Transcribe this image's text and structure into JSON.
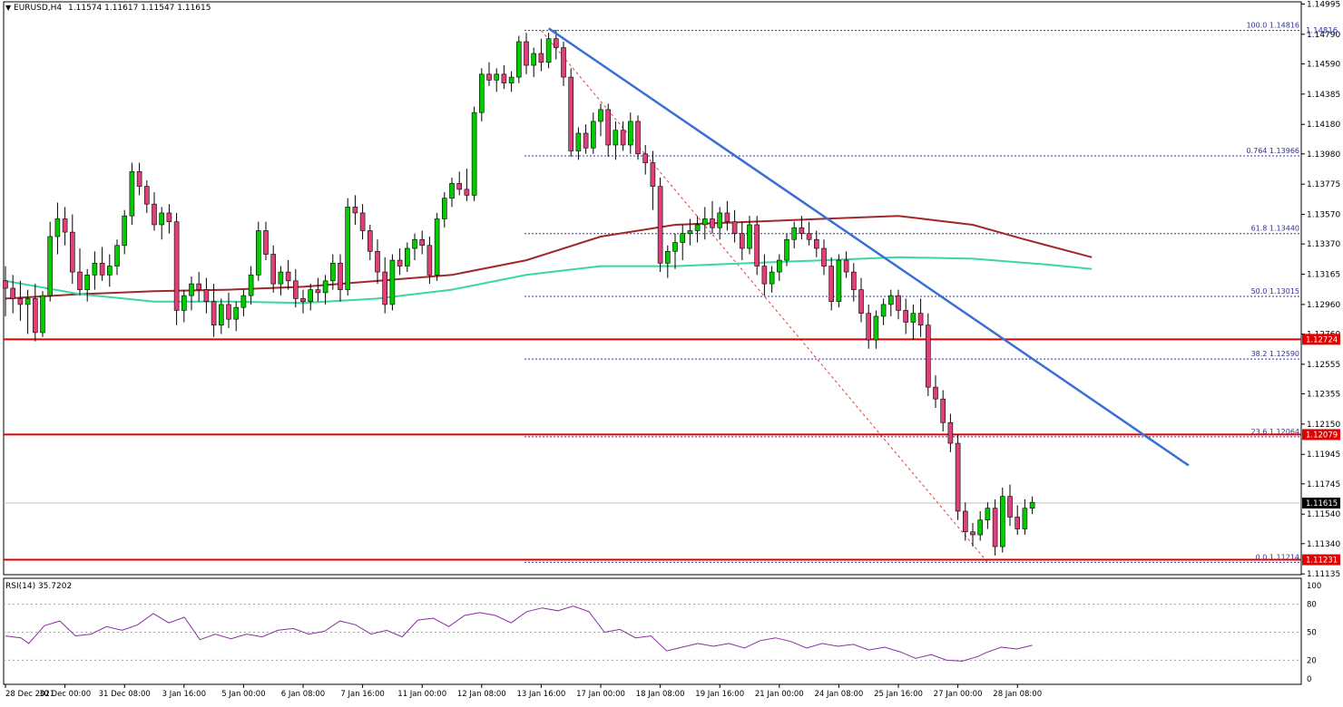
{
  "header": {
    "symbol": "EURUSD,H4",
    "ohlc": "1.11574 1.11617 1.11547 1.11615"
  },
  "rsi_header": "RSI(14) 35.7202",
  "colors": {
    "bull": "#00cc00",
    "bear": "#e0407a",
    "ma_slow": "#a02828",
    "ma_fast": "#3cd6a0",
    "trendline": "#3a6fd6",
    "support": "#e00000",
    "fib": "#3030a0",
    "rsi": "#8a2fa0"
  },
  "price_axis": {
    "min": 1.1113,
    "max": 1.1501,
    "ticks": [
      "1.14995",
      "1.14790",
      "1.14590",
      "1.14385",
      "1.14180",
      "1.13980",
      "1.13775",
      "1.13570",
      "1.13370",
      "1.13165",
      "1.12960",
      "1.12760",
      "1.12555",
      "1.12355",
      "1.12150",
      "1.11945",
      "1.11745",
      "1.11540",
      "1.11340",
      "1.11135"
    ]
  },
  "price_badges": [
    {
      "label": "1.14816",
      "value": 1.14816,
      "kind": "blue"
    },
    {
      "label": "1.12724",
      "value": 1.12724,
      "kind": "red"
    },
    {
      "label": "1.12079",
      "value": 1.12079,
      "kind": "red"
    },
    {
      "label": "1.11615",
      "value": 1.11615,
      "kind": "black"
    },
    {
      "label": "1.11231",
      "value": 1.11231,
      "kind": "red"
    }
  ],
  "support_levels": [
    1.12724,
    1.12079,
    1.11231
  ],
  "current_price": 1.11615,
  "fib_levels": [
    {
      "label": "100.0 1.14816",
      "value": 1.14816
    },
    {
      "label": "0.764 1.13966",
      "value": 1.13966
    },
    {
      "label": "61.8 1.13440",
      "value": 1.1344
    },
    {
      "label": "50.0 1.13015",
      "value": 1.13015
    },
    {
      "label": "38.2 1.12590",
      "value": 1.1259
    },
    {
      "label": "23.6 1.12064",
      "value": 1.12064
    },
    {
      "label": "0.0 1.11214",
      "value": 1.11214
    }
  ],
  "time_axis": [
    {
      "label": "28 Dec 2021",
      "bar": 0
    },
    {
      "label": "30 Dec 00:00",
      "bar": 8
    },
    {
      "label": "31 Dec 08:00",
      "bar": 16
    },
    {
      "label": "3 Jan 16:00",
      "bar": 24
    },
    {
      "label": "5 Jan 00:00",
      "bar": 32
    },
    {
      "label": "6 Jan 08:00",
      "bar": 40
    },
    {
      "label": "7 Jan 16:00",
      "bar": 48
    },
    {
      "label": "11 Jan 00:00",
      "bar": 56
    },
    {
      "label": "12 Jan 08:00",
      "bar": 64
    },
    {
      "label": "13 Jan 16:00",
      "bar": 72
    },
    {
      "label": "17 Jan 00:00",
      "bar": 80
    },
    {
      "label": "18 Jan 08:00",
      "bar": 88
    },
    {
      "label": "19 Jan 16:00",
      "bar": 96
    },
    {
      "label": "21 Jan 00:00",
      "bar": 104
    },
    {
      "label": "24 Jan 08:00",
      "bar": 112
    },
    {
      "label": "25 Jan 16:00",
      "bar": 120
    },
    {
      "label": "27 Jan 00:00",
      "bar": 128
    },
    {
      "label": "28 Jan 08:00",
      "bar": 136
    }
  ],
  "rsi_axis": [
    "100",
    "80",
    "50",
    "20",
    "0"
  ],
  "rsi_levels": [
    80,
    50,
    20
  ],
  "chart_data": {
    "type": "candlestick",
    "symbol": "EURUSD",
    "timeframe": "H4",
    "candles": [
      [
        1.1312,
        1.1322,
        1.1288,
        1.1307
      ],
      [
        1.1307,
        1.1316,
        1.129,
        1.13
      ],
      [
        1.13,
        1.1312,
        1.1285,
        1.1296
      ],
      [
        1.1296,
        1.1306,
        1.1276,
        1.13
      ],
      [
        1.13,
        1.131,
        1.1271,
        1.1277
      ],
      [
        1.1277,
        1.1305,
        1.1274,
        1.1302
      ],
      [
        1.1302,
        1.1352,
        1.1298,
        1.1342
      ],
      [
        1.1342,
        1.1365,
        1.133,
        1.1354
      ],
      [
        1.1354,
        1.1362,
        1.1336,
        1.1345
      ],
      [
        1.1345,
        1.1357,
        1.131,
        1.1318
      ],
      [
        1.1318,
        1.1334,
        1.1302,
        1.1306
      ],
      [
        1.1306,
        1.132,
        1.1298,
        1.1316
      ],
      [
        1.1316,
        1.1332,
        1.1306,
        1.1324
      ],
      [
        1.1324,
        1.1335,
        1.1312,
        1.1316
      ],
      [
        1.1316,
        1.133,
        1.1308,
        1.1322
      ],
      [
        1.1322,
        1.134,
        1.1316,
        1.1336
      ],
      [
        1.1336,
        1.136,
        1.133,
        1.1356
      ],
      [
        1.1356,
        1.1392,
        1.135,
        1.1386
      ],
      [
        1.1386,
        1.1392,
        1.137,
        1.1376
      ],
      [
        1.1376,
        1.138,
        1.1358,
        1.1364
      ],
      [
        1.1364,
        1.1372,
        1.1346,
        1.135
      ],
      [
        1.135,
        1.1362,
        1.134,
        1.1358
      ],
      [
        1.1358,
        1.1364,
        1.1344,
        1.1352
      ],
      [
        1.1352,
        1.1358,
        1.1282,
        1.1292
      ],
      [
        1.1292,
        1.1306,
        1.1284,
        1.1302
      ],
      [
        1.1302,
        1.1315,
        1.1292,
        1.131
      ],
      [
        1.131,
        1.1318,
        1.1298,
        1.1306
      ],
      [
        1.1306,
        1.1314,
        1.129,
        1.1298
      ],
      [
        1.1298,
        1.131,
        1.1274,
        1.1282
      ],
      [
        1.1282,
        1.13,
        1.1276,
        1.1296
      ],
      [
        1.1296,
        1.1304,
        1.128,
        1.1286
      ],
      [
        1.1286,
        1.1298,
        1.1278,
        1.1294
      ],
      [
        1.1294,
        1.1306,
        1.1288,
        1.1302
      ],
      [
        1.1302,
        1.1322,
        1.1296,
        1.1316
      ],
      [
        1.1316,
        1.1352,
        1.1312,
        1.1346
      ],
      [
        1.1346,
        1.1352,
        1.1326,
        1.133
      ],
      [
        1.133,
        1.1336,
        1.1304,
        1.131
      ],
      [
        1.131,
        1.1322,
        1.1302,
        1.1318
      ],
      [
        1.1318,
        1.1326,
        1.1306,
        1.1312
      ],
      [
        1.1312,
        1.132,
        1.1294,
        1.13
      ],
      [
        1.13,
        1.1306,
        1.129,
        1.1298
      ],
      [
        1.1298,
        1.131,
        1.1292,
        1.1306
      ],
      [
        1.1306,
        1.1314,
        1.1298,
        1.1304
      ],
      [
        1.1304,
        1.1316,
        1.1296,
        1.1312
      ],
      [
        1.1312,
        1.133,
        1.1306,
        1.1324
      ],
      [
        1.1324,
        1.133,
        1.1298,
        1.1306
      ],
      [
        1.1306,
        1.1368,
        1.1302,
        1.1362
      ],
      [
        1.1362,
        1.137,
        1.135,
        1.1358
      ],
      [
        1.1358,
        1.1364,
        1.134,
        1.1346
      ],
      [
        1.1346,
        1.135,
        1.1326,
        1.1332
      ],
      [
        1.1332,
        1.134,
        1.131,
        1.1318
      ],
      [
        1.1318,
        1.1328,
        1.129,
        1.1296
      ],
      [
        1.1296,
        1.133,
        1.1292,
        1.1326
      ],
      [
        1.1326,
        1.1334,
        1.1316,
        1.1322
      ],
      [
        1.1322,
        1.1338,
        1.1318,
        1.1334
      ],
      [
        1.1334,
        1.1344,
        1.1326,
        1.134
      ],
      [
        1.134,
        1.1346,
        1.133,
        1.1336
      ],
      [
        1.1336,
        1.1342,
        1.131,
        1.1316
      ],
      [
        1.1316,
        1.1358,
        1.1312,
        1.1354
      ],
      [
        1.1354,
        1.1372,
        1.1348,
        1.1368
      ],
      [
        1.1368,
        1.1382,
        1.1362,
        1.1378
      ],
      [
        1.1378,
        1.1386,
        1.137,
        1.1374
      ],
      [
        1.1374,
        1.1388,
        1.1366,
        1.137
      ],
      [
        1.137,
        1.143,
        1.1366,
        1.1426
      ],
      [
        1.1426,
        1.1456,
        1.142,
        1.1452
      ],
      [
        1.1452,
        1.146,
        1.1444,
        1.1448
      ],
      [
        1.1448,
        1.1456,
        1.144,
        1.1452
      ],
      [
        1.1452,
        1.1458,
        1.1442,
        1.1446
      ],
      [
        1.1446,
        1.1454,
        1.144,
        1.145
      ],
      [
        1.145,
        1.1478,
        1.1446,
        1.1474
      ],
      [
        1.1474,
        1.148,
        1.1452,
        1.1458
      ],
      [
        1.1458,
        1.147,
        1.145,
        1.1466
      ],
      [
        1.1466,
        1.1476,
        1.1454,
        1.146
      ],
      [
        1.146,
        1.148,
        1.1456,
        1.1476
      ],
      [
        1.1476,
        1.1482,
        1.1462,
        1.147
      ],
      [
        1.147,
        1.1474,
        1.1444,
        1.145
      ],
      [
        1.145,
        1.1456,
        1.1396,
        1.14
      ],
      [
        1.14,
        1.1416,
        1.1394,
        1.1412
      ],
      [
        1.1412,
        1.1418,
        1.1398,
        1.1402
      ],
      [
        1.1402,
        1.1426,
        1.1398,
        1.142
      ],
      [
        1.142,
        1.1432,
        1.141,
        1.1428
      ],
      [
        1.1428,
        1.1432,
        1.1396,
        1.1404
      ],
      [
        1.1404,
        1.142,
        1.1394,
        1.1414
      ],
      [
        1.1414,
        1.142,
        1.14,
        1.1404
      ],
      [
        1.1404,
        1.1426,
        1.1398,
        1.142
      ],
      [
        1.142,
        1.1424,
        1.1394,
        1.1398
      ],
      [
        1.1398,
        1.1404,
        1.1384,
        1.1392
      ],
      [
        1.1392,
        1.14,
        1.136,
        1.1376
      ],
      [
        1.1376,
        1.1382,
        1.1318,
        1.1324
      ],
      [
        1.1324,
        1.1336,
        1.1314,
        1.1332
      ],
      [
        1.1332,
        1.1344,
        1.132,
        1.1338
      ],
      [
        1.1338,
        1.135,
        1.1326,
        1.1344
      ],
      [
        1.1344,
        1.1354,
        1.1336,
        1.1346
      ],
      [
        1.1346,
        1.1356,
        1.1338,
        1.135
      ],
      [
        1.135,
        1.1362,
        1.134,
        1.1354
      ],
      [
        1.1354,
        1.1366,
        1.1344,
        1.1348
      ],
      [
        1.1348,
        1.1362,
        1.134,
        1.1358
      ],
      [
        1.1358,
        1.1366,
        1.1346,
        1.1352
      ],
      [
        1.1352,
        1.136,
        1.1338,
        1.1344
      ],
      [
        1.1344,
        1.1352,
        1.1326,
        1.1334
      ],
      [
        1.1334,
        1.1356,
        1.133,
        1.135
      ],
      [
        1.135,
        1.1356,
        1.1316,
        1.1322
      ],
      [
        1.1322,
        1.133,
        1.1302,
        1.131
      ],
      [
        1.131,
        1.1322,
        1.1304,
        1.1318
      ],
      [
        1.1318,
        1.133,
        1.1312,
        1.1326
      ],
      [
        1.1326,
        1.1344,
        1.1322,
        1.134
      ],
      [
        1.134,
        1.1352,
        1.1334,
        1.1348
      ],
      [
        1.1348,
        1.1356,
        1.134,
        1.1344
      ],
      [
        1.1344,
        1.1352,
        1.1336,
        1.134
      ],
      [
        1.134,
        1.1346,
        1.1328,
        1.1334
      ],
      [
        1.1334,
        1.134,
        1.1316,
        1.1322
      ],
      [
        1.1322,
        1.1328,
        1.1292,
        1.1298
      ],
      [
        1.1298,
        1.133,
        1.1294,
        1.1326
      ],
      [
        1.1326,
        1.1332,
        1.1314,
        1.1318
      ],
      [
        1.1318,
        1.1324,
        1.1298,
        1.1306
      ],
      [
        1.1306,
        1.1314,
        1.1284,
        1.129
      ],
      [
        1.129,
        1.1296,
        1.1266,
        1.1272
      ],
      [
        1.1272,
        1.1292,
        1.1266,
        1.1288
      ],
      [
        1.1288,
        1.13,
        1.1282,
        1.1296
      ],
      [
        1.1296,
        1.1306,
        1.1288,
        1.1302
      ],
      [
        1.1302,
        1.1306,
        1.1286,
        1.1292
      ],
      [
        1.1292,
        1.13,
        1.1276,
        1.1284
      ],
      [
        1.1284,
        1.1296,
        1.1272,
        1.129
      ],
      [
        1.129,
        1.13,
        1.1274,
        1.1282
      ],
      [
        1.1282,
        1.129,
        1.1234,
        1.124
      ],
      [
        1.124,
        1.1248,
        1.1226,
        1.1232
      ],
      [
        1.1232,
        1.1238,
        1.121,
        1.1216
      ],
      [
        1.1216,
        1.1222,
        1.1196,
        1.1202
      ],
      [
        1.1202,
        1.1208,
        1.115,
        1.1156
      ],
      [
        1.1156,
        1.1162,
        1.1136,
        1.1142
      ],
      [
        1.1142,
        1.1148,
        1.1132,
        1.114
      ],
      [
        1.114,
        1.1156,
        1.1136,
        1.115
      ],
      [
        1.115,
        1.1162,
        1.1144,
        1.1158
      ],
      [
        1.1158,
        1.1164,
        1.1126,
        1.1132
      ],
      [
        1.1132,
        1.1172,
        1.1128,
        1.1166
      ],
      [
        1.1166,
        1.1174,
        1.1146,
        1.1152
      ],
      [
        1.1152,
        1.116,
        1.114,
        1.1144
      ],
      [
        1.1144,
        1.1164,
        1.114,
        1.1158
      ],
      [
        1.1158,
        1.1166,
        1.1154,
        1.1162
      ]
    ],
    "ma_slow": [
      [
        0,
        1.13
      ],
      [
        10,
        1.1303
      ],
      [
        20,
        1.1305
      ],
      [
        30,
        1.1306
      ],
      [
        40,
        1.1308
      ],
      [
        50,
        1.1312
      ],
      [
        60,
        1.1316
      ],
      [
        70,
        1.1326
      ],
      [
        80,
        1.1342
      ],
      [
        90,
        1.135
      ],
      [
        100,
        1.1352
      ],
      [
        110,
        1.1354
      ],
      [
        120,
        1.1356
      ],
      [
        125,
        1.1353
      ],
      [
        130,
        1.135
      ],
      [
        137,
        1.134
      ],
      [
        146,
        1.1328
      ]
    ],
    "ma_fast": [
      [
        0,
        1.1312
      ],
      [
        10,
        1.1303
      ],
      [
        20,
        1.1298
      ],
      [
        30,
        1.1298
      ],
      [
        40,
        1.1297
      ],
      [
        50,
        1.13
      ],
      [
        60,
        1.1306
      ],
      [
        70,
        1.1316
      ],
      [
        80,
        1.1322
      ],
      [
        90,
        1.1322
      ],
      [
        100,
        1.1324
      ],
      [
        110,
        1.1326
      ],
      [
        120,
        1.1328
      ],
      [
        130,
        1.1327
      ],
      [
        140,
        1.1323
      ],
      [
        146,
        1.132
      ]
    ],
    "trendline": {
      "from": [
        73,
        1.1483
      ],
      "to": [
        159,
        1.1187
      ]
    },
    "fib_diagonal": {
      "from": [
        72,
        1.14816
      ],
      "to": [
        132,
        1.11214
      ]
    },
    "rsi": [
      [
        0,
        46
      ],
      [
        4,
        44
      ],
      [
        6,
        38
      ],
      [
        10,
        57
      ],
      [
        14,
        62
      ],
      [
        18,
        46
      ],
      [
        22,
        48
      ],
      [
        26,
        56
      ],
      [
        30,
        52
      ],
      [
        34,
        58
      ],
      [
        38,
        70
      ],
      [
        42,
        60
      ],
      [
        46,
        66
      ],
      [
        50,
        42
      ],
      [
        54,
        48
      ],
      [
        58,
        43
      ],
      [
        62,
        48
      ],
      [
        66,
        45
      ],
      [
        70,
        52
      ],
      [
        74,
        54
      ],
      [
        78,
        48
      ],
      [
        82,
        51
      ],
      [
        86,
        62
      ],
      [
        90,
        58
      ],
      [
        94,
        48
      ],
      [
        98,
        52
      ],
      [
        102,
        45
      ],
      [
        106,
        63
      ],
      [
        110,
        65
      ],
      [
        114,
        56
      ],
      [
        118,
        68
      ],
      [
        122,
        71
      ],
      [
        126,
        68
      ],
      [
        130,
        60
      ],
      [
        134,
        72
      ],
      [
        138,
        76
      ],
      [
        142,
        73
      ],
      [
        146,
        78
      ],
      [
        150,
        72
      ],
      [
        154,
        50
      ],
      [
        158,
        53
      ],
      [
        162,
        44
      ],
      [
        166,
        46
      ],
      [
        170,
        30
      ],
      [
        174,
        34
      ],
      [
        178,
        38
      ],
      [
        182,
        35
      ],
      [
        186,
        38
      ],
      [
        190,
        33
      ],
      [
        194,
        41
      ],
      [
        198,
        44
      ],
      [
        202,
        40
      ],
      [
        206,
        33
      ],
      [
        210,
        38
      ],
      [
        214,
        35
      ],
      [
        218,
        37
      ],
      [
        222,
        31
      ],
      [
        226,
        34
      ],
      [
        230,
        29
      ],
      [
        234,
        22
      ],
      [
        238,
        26
      ],
      [
        242,
        20
      ],
      [
        246,
        19
      ],
      [
        250,
        24
      ],
      [
        252,
        28
      ],
      [
        256,
        34
      ],
      [
        260,
        32
      ],
      [
        264,
        36
      ]
    ]
  }
}
